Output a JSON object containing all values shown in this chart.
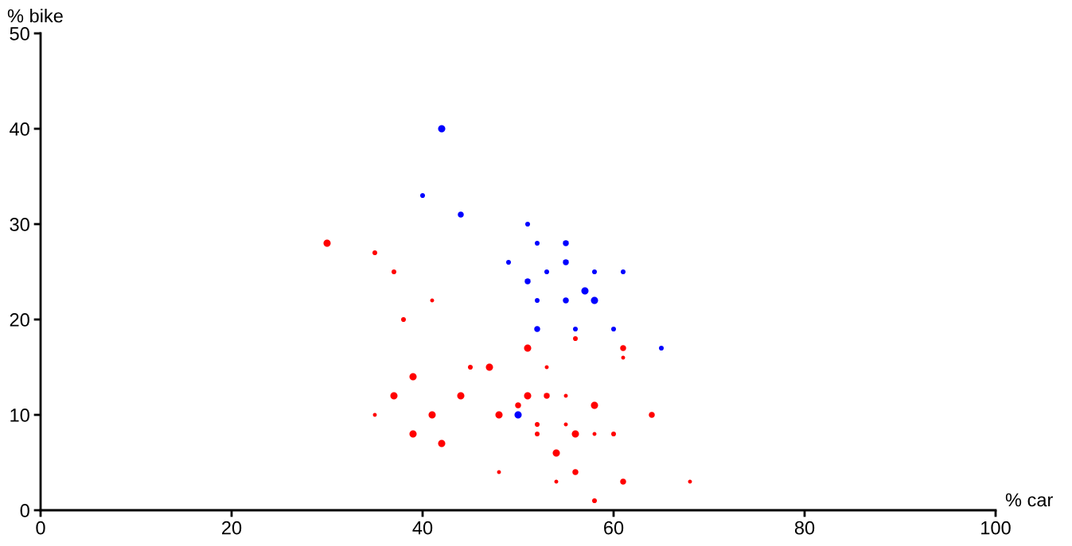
{
  "chart_data": {
    "type": "scatter",
    "xlabel": "% car",
    "ylabel": "% bike",
    "xlim": [
      0,
      100
    ],
    "ylim": [
      0,
      50
    ],
    "xticks": [
      0,
      20,
      40,
      60,
      80,
      100
    ],
    "yticks": [
      0,
      10,
      20,
      30,
      40,
      50
    ],
    "grid": false,
    "legend": false,
    "marker": "circle",
    "series": [
      {
        "color": "#0000ff",
        "x": [
          42,
          40,
          44,
          51,
          52,
          55,
          49,
          55,
          51,
          53,
          58,
          61,
          57,
          58,
          52,
          55,
          52,
          56,
          60,
          65,
          50
        ],
        "values": [
          40,
          33,
          31,
          30,
          28,
          28,
          26,
          26,
          24,
          25,
          25,
          25,
          23,
          22,
          22,
          22,
          19,
          19,
          19,
          17,
          10
        ],
        "sizes": [
          1,
          0.45,
          0.7,
          0.45,
          0.45,
          0.7,
          0.45,
          0.7,
          0.7,
          0.45,
          0.45,
          0.45,
          1,
          1,
          0.45,
          0.7,
          0.7,
          0.45,
          0.45,
          0.45,
          1
        ]
      },
      {
        "color": "#ff0000",
        "x": [
          30,
          35,
          37,
          41,
          38,
          56,
          51,
          61,
          61,
          39,
          45,
          47,
          53,
          37,
          44,
          51,
          53,
          55,
          35,
          41,
          48,
          50,
          58,
          64,
          39,
          52,
          52,
          55,
          56,
          58,
          60,
          42,
          54,
          48,
          56,
          54,
          61,
          68,
          58
        ],
        "values": [
          28,
          27,
          25,
          22,
          20,
          18,
          17,
          17,
          16,
          14,
          15,
          15,
          15,
          12,
          12,
          12,
          12,
          12,
          10,
          10,
          10,
          11,
          11,
          10,
          8,
          9,
          8,
          9,
          8,
          8,
          8,
          7,
          6,
          4,
          4,
          3,
          3,
          3,
          1
        ],
        "sizes": [
          1,
          0.45,
          0.45,
          0.3,
          0.45,
          0.45,
          1,
          0.7,
          0.3,
          1,
          0.45,
          1,
          0.3,
          1,
          1,
          1,
          0.7,
          0.3,
          0.3,
          1,
          1,
          0.7,
          1,
          0.7,
          1,
          0.45,
          0.45,
          0.3,
          1,
          0.3,
          0.45,
          1,
          1,
          0.3,
          0.7,
          0.3,
          0.7,
          0.3,
          0.45
        ]
      }
    ]
  }
}
